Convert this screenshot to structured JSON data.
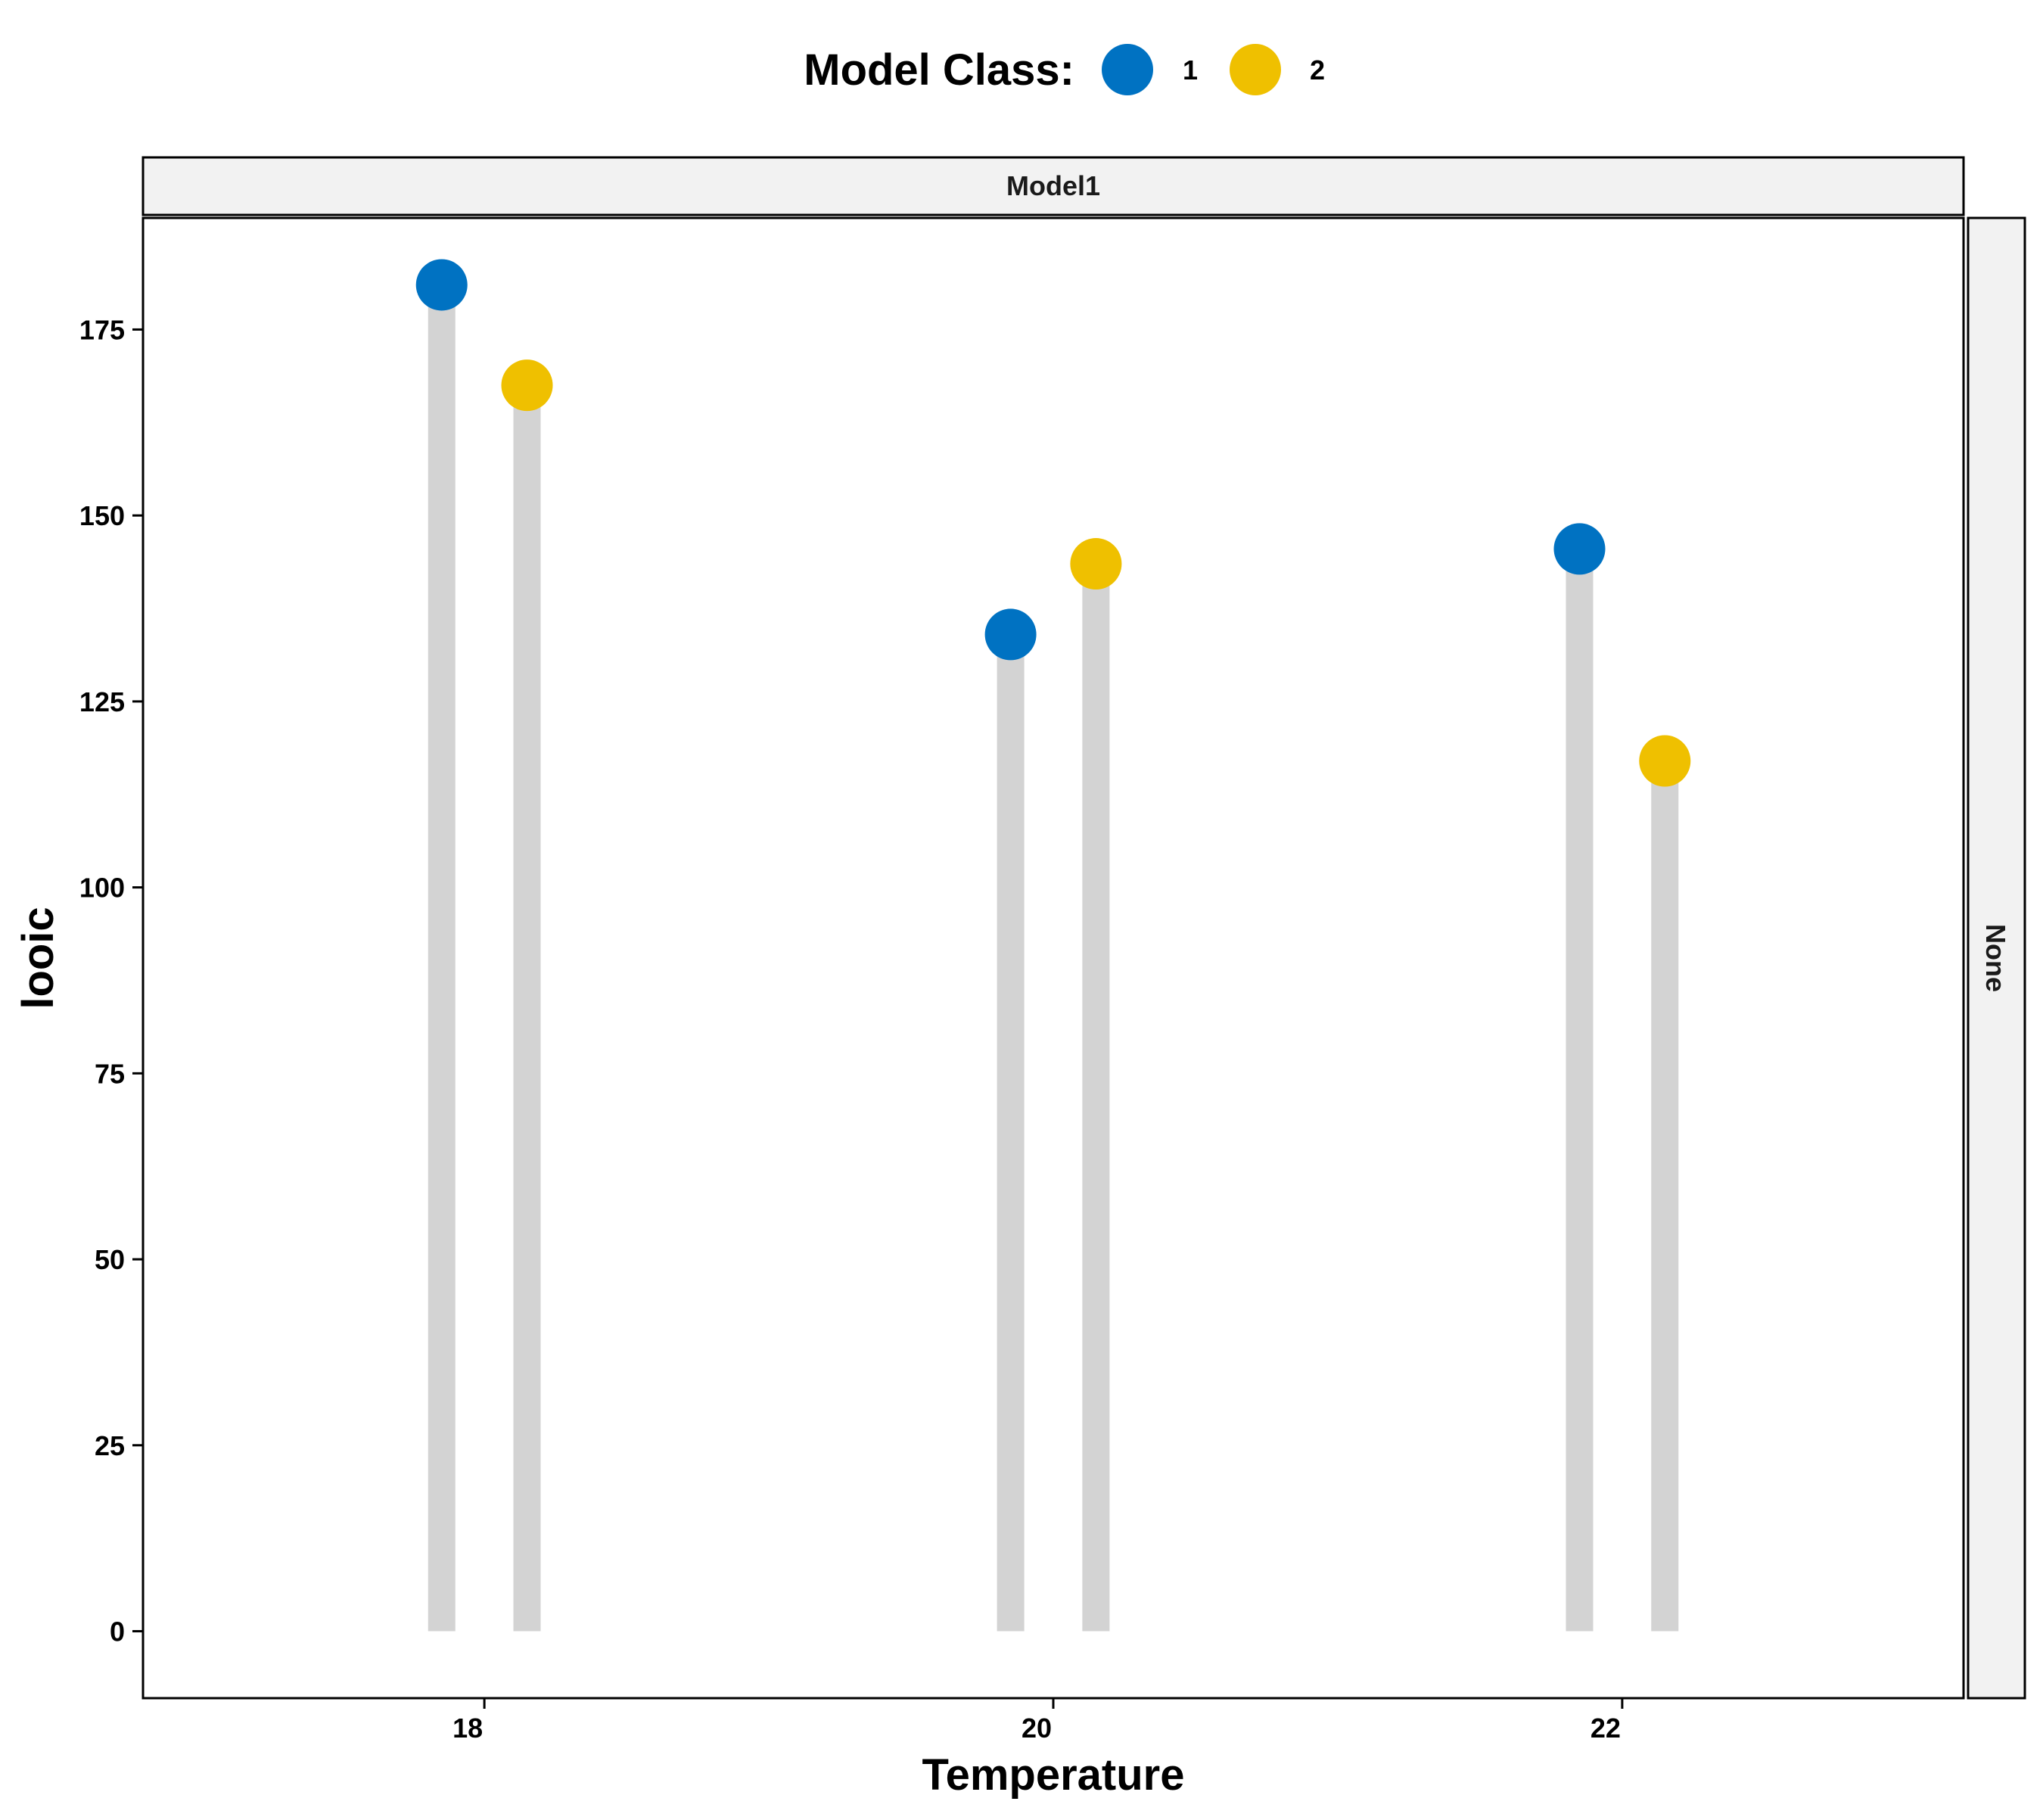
{
  "legend": {
    "title": "Model Class:",
    "items": [
      {
        "label": "1",
        "color": "#0072C2"
      },
      {
        "label": "2",
        "color": "#EFC000"
      }
    ]
  },
  "facet": {
    "column_label": "Model1",
    "row_label": "None"
  },
  "colors": {
    "stem": "#D3D3D3",
    "strip_fill": "#F2F2F2",
    "axis": "#000000"
  },
  "chart_data": {
    "type": "lollipop",
    "title": "",
    "xlabel": "Temperature",
    "ylabel": "looic",
    "xlim": [
      16.8,
      23.2
    ],
    "ylim": [
      -9,
      190
    ],
    "x_ticks": [
      18,
      20,
      22
    ],
    "y_ticks": [
      0,
      25,
      50,
      75,
      100,
      125,
      150,
      175
    ],
    "categories": [
      18,
      20,
      22
    ],
    "series": [
      {
        "name": "1",
        "color": "#0072C2",
        "values": [
          181,
          134,
          145.5
        ]
      },
      {
        "name": "2",
        "color": "#EFC000",
        "values": [
          167.5,
          143.5,
          117
        ]
      }
    ],
    "grid": false,
    "legend_position": "top"
  }
}
